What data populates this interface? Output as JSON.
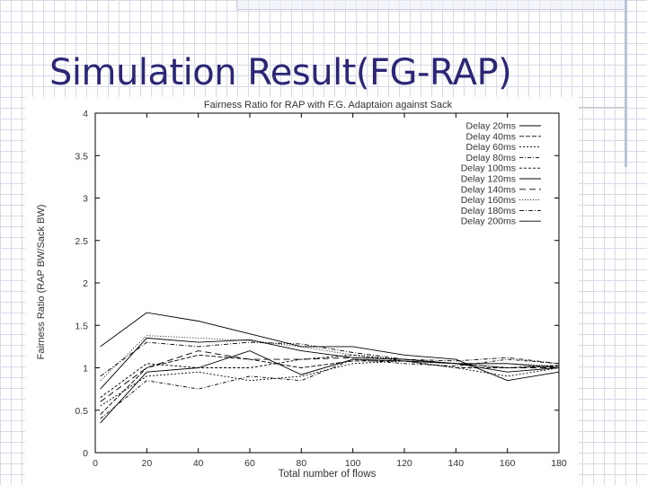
{
  "slide": {
    "title": "Simulation Result(FG-RAP)"
  },
  "colors": {
    "title": "#2b2676",
    "grid_background": "#d6d9e8",
    "series_line": "#000000"
  },
  "chart_data": {
    "type": "line",
    "title": "Fairness Ratio for RAP with F.G. Adaptaion against Sack",
    "xlabel": "Total number of flows",
    "ylabel": "Fairness Ratio (RAP BW/Sack BW)",
    "xlim": [
      0,
      180
    ],
    "ylim": [
      0,
      4
    ],
    "xticks": [
      0,
      20,
      40,
      60,
      80,
      100,
      120,
      140,
      160,
      180
    ],
    "yticks": [
      0,
      0.5,
      1,
      1.5,
      2,
      2.5,
      3,
      3.5,
      4
    ],
    "ytick_labels": [
      "0",
      "0.5",
      "1",
      "1.5",
      "2",
      "2.5",
      "3",
      "3.5",
      "4"
    ],
    "grid": false,
    "legend_position": "top-right",
    "x": [
      2,
      20,
      40,
      60,
      80,
      100,
      120,
      140,
      160,
      180
    ],
    "series": [
      {
        "name": "Delay 20ms",
        "dash": "",
        "values": [
          0.35,
          0.95,
          1.0,
          1.2,
          0.92,
          1.1,
          1.08,
          1.05,
          1.05,
          1.0
        ]
      },
      {
        "name": "Delay 40ms",
        "dash": "5,2",
        "values": [
          0.45,
          1.0,
          1.15,
          1.1,
          1.0,
          1.08,
          1.08,
          1.0,
          1.0,
          1.02
        ]
      },
      {
        "name": "Delay 60ms",
        "dash": "2,2",
        "values": [
          0.55,
          0.9,
          0.95,
          0.85,
          0.9,
          1.05,
          1.08,
          1.0,
          0.9,
          1.0
        ]
      },
      {
        "name": "Delay 80ms",
        "dash": "4,2,1,2",
        "values": [
          0.4,
          0.85,
          0.75,
          0.9,
          0.85,
          1.1,
          1.05,
          1.02,
          1.1,
          1.05
        ]
      },
      {
        "name": "Delay 100ms",
        "dash": "3,2",
        "values": [
          0.65,
          1.05,
          1.0,
          1.0,
          1.1,
          1.15,
          1.08,
          1.05,
          1.0,
          1.03
        ]
      },
      {
        "name": "Delay 120ms",
        "dash": "",
        "values": [
          0.75,
          1.35,
          1.3,
          1.33,
          1.2,
          1.12,
          1.1,
          1.05,
          0.95,
          1.0
        ]
      },
      {
        "name": "Delay 140ms",
        "dash": "7,4",
        "values": [
          0.6,
          1.0,
          1.2,
          1.1,
          1.1,
          1.12,
          1.1,
          1.05,
          1.0,
          1.0
        ]
      },
      {
        "name": "Delay 160ms",
        "dash": "1,2",
        "values": [
          0.85,
          1.38,
          1.35,
          1.32,
          1.25,
          1.15,
          1.1,
          1.05,
          1.05,
          1.02
        ]
      },
      {
        "name": "Delay 180ms",
        "dash": "5,2,1,2",
        "values": [
          0.9,
          1.3,
          1.25,
          1.3,
          1.28,
          1.18,
          1.1,
          1.08,
          1.12,
          1.05
        ]
      },
      {
        "name": "Delay 200ms",
        "dash": "",
        "values": [
          1.25,
          1.65,
          1.55,
          1.4,
          1.25,
          1.25,
          1.15,
          1.1,
          0.85,
          0.95
        ]
      }
    ]
  }
}
